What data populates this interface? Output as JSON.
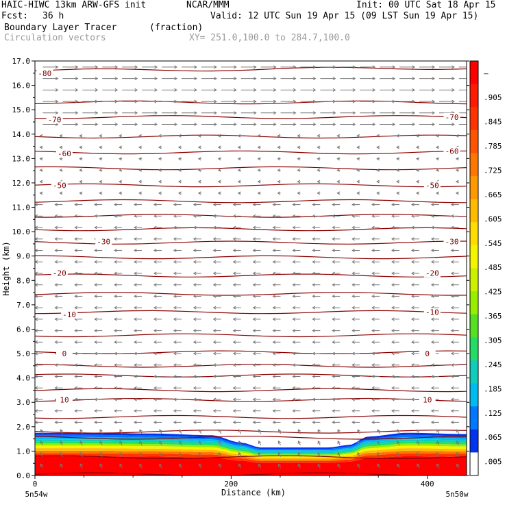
{
  "header": {
    "model": "HAIC-HIWC 13km ARW-GFS init",
    "org": "NCAR/MMM",
    "init": "Init: 00 UTC Sat 18 Apr 15",
    "fcst_label": "Fcst:",
    "fcst_value": "36 h",
    "valid": "Valid: 12 UTC Sun 19 Apr 15 (09 LST Sun 19 Apr 15)",
    "field": "Boundary Layer Tracer",
    "field_units": "(fraction)",
    "overlay": "Circulation vectors",
    "xy": "XY= 251.0,100.0 to 284.7,100.0"
  },
  "chart_data": {
    "type": "heatmap",
    "title": "Boundary Layer Tracer",
    "xlabel": "Distance (km)",
    "ylabel": "Height (km)",
    "xlim": [
      0,
      440
    ],
    "ylim": [
      0,
      17
    ],
    "x_ticks": [
      "0",
      "200",
      "400"
    ],
    "x_tick_values": [
      0,
      200,
      400
    ],
    "x_end_labels": [
      "5n54w",
      "5n50w"
    ],
    "y_ticks": [
      "0.0",
      "1.0",
      "2.0",
      "3.0",
      "4.0",
      "5.0",
      "6.0",
      "7.0",
      "8.0",
      "9.0",
      "10.0",
      "11.0",
      "12.0",
      "13.0",
      "14.0",
      "15.0",
      "16.0",
      "17.0"
    ],
    "colorbar_labels": [
      "–",
      ".905",
      ".845",
      ".785",
      ".725",
      ".665",
      ".605",
      ".545",
      ".485",
      ".425",
      ".365",
      ".305",
      ".245",
      ".185",
      ".125",
      ".065",
      ".005"
    ],
    "colorbar_colors": [
      "#ff0000",
      "#ff1a00",
      "#ff3300",
      "#ff5500",
      "#ff7700",
      "#ff9900",
      "#ffbb00",
      "#ffdd00",
      "#f5f500",
      "#ccf000",
      "#99ee00",
      "#55e022",
      "#22dd66",
      "#11ccbb",
      "#00bbee",
      "#0077ff",
      "#0033ee",
      "#ffffff"
    ],
    "boundary_layer_top_km": {
      "x": [
        0,
        60,
        120,
        180,
        210,
        230,
        250,
        300,
        320,
        340,
        380,
        440
      ],
      "top": [
        1.75,
        1.75,
        1.72,
        1.65,
        1.35,
        1.15,
        1.15,
        1.15,
        1.25,
        1.6,
        1.75,
        1.7
      ]
    },
    "temperature_contour_labels": [
      {
        "value": "-80",
        "x": 10,
        "y": 16.5
      },
      {
        "value": "-70",
        "x": 20,
        "y": 14.6
      },
      {
        "value": "-70",
        "x": 425,
        "y": 14.7
      },
      {
        "value": "-60",
        "x": 30,
        "y": 13.2
      },
      {
        "value": "-60",
        "x": 425,
        "y": 13.3
      },
      {
        "value": "-50",
        "x": 25,
        "y": 11.9
      },
      {
        "value": "-50",
        "x": 405,
        "y": 11.9
      },
      {
        "value": "-30",
        "x": 70,
        "y": 9.6
      },
      {
        "value": "-30",
        "x": 425,
        "y": 9.6
      },
      {
        "value": "-20",
        "x": 25,
        "y": 8.3
      },
      {
        "value": "-20",
        "x": 405,
        "y": 8.3
      },
      {
        "value": "-10",
        "x": 35,
        "y": 6.6
      },
      {
        "value": "-10",
        "x": 405,
        "y": 6.7
      },
      {
        "value": "0",
        "x": 30,
        "y": 5.0
      },
      {
        "value": "0",
        "x": 400,
        "y": 5.0
      },
      {
        "value": "10",
        "x": 30,
        "y": 3.1
      },
      {
        "value": "10",
        "x": 400,
        "y": 3.1
      }
    ],
    "isotherm_heights_km": [
      0.05,
      0.75,
      1.55,
      1.8,
      2.4,
      3.1,
      3.5,
      4.1,
      4.5,
      5.05,
      5.75,
      6.7,
      7.45,
      8.2,
      8.95,
      9.55,
      10.1,
      10.65,
      11.25,
      11.9,
      12.6,
      13.25,
      13.9,
      14.7,
      15.3,
      16.6
    ],
    "wind_regime": [
      {
        "z_min": 14.0,
        "z_max": 17.0,
        "direction": "east"
      },
      {
        "z_min": 11.5,
        "z_max": 14.0,
        "direction": "weak"
      },
      {
        "z_min": 0.0,
        "z_max": 11.5,
        "direction": "west"
      }
    ]
  }
}
